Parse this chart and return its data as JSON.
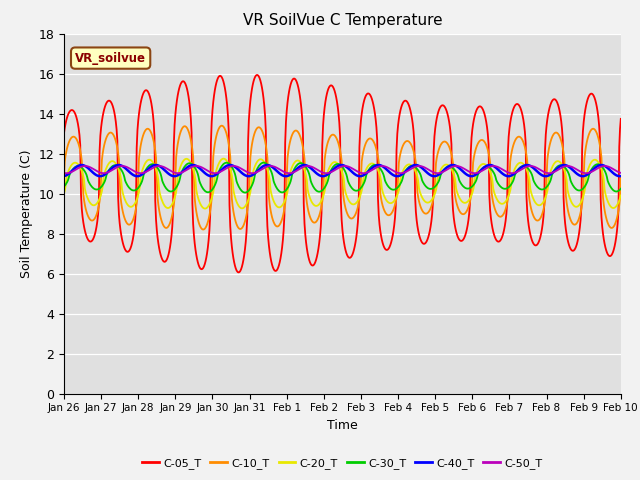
{
  "title": "VR SoilVue C Temperature",
  "xlabel": "Time",
  "ylabel": "Soil Temperature (C)",
  "ylim": [
    0,
    18
  ],
  "yticks": [
    0,
    2,
    4,
    6,
    8,
    10,
    12,
    14,
    16,
    18
  ],
  "colors": {
    "C-05_T": "#ff0000",
    "C-10_T": "#ff8c00",
    "C-20_T": "#e8e800",
    "C-30_T": "#00cc00",
    "C-40_T": "#0000ff",
    "C-50_T": "#bb00bb"
  },
  "fig_bg": "#f2f2f2",
  "plot_bg": "#e0e0e0",
  "grid_color": "#ffffff"
}
